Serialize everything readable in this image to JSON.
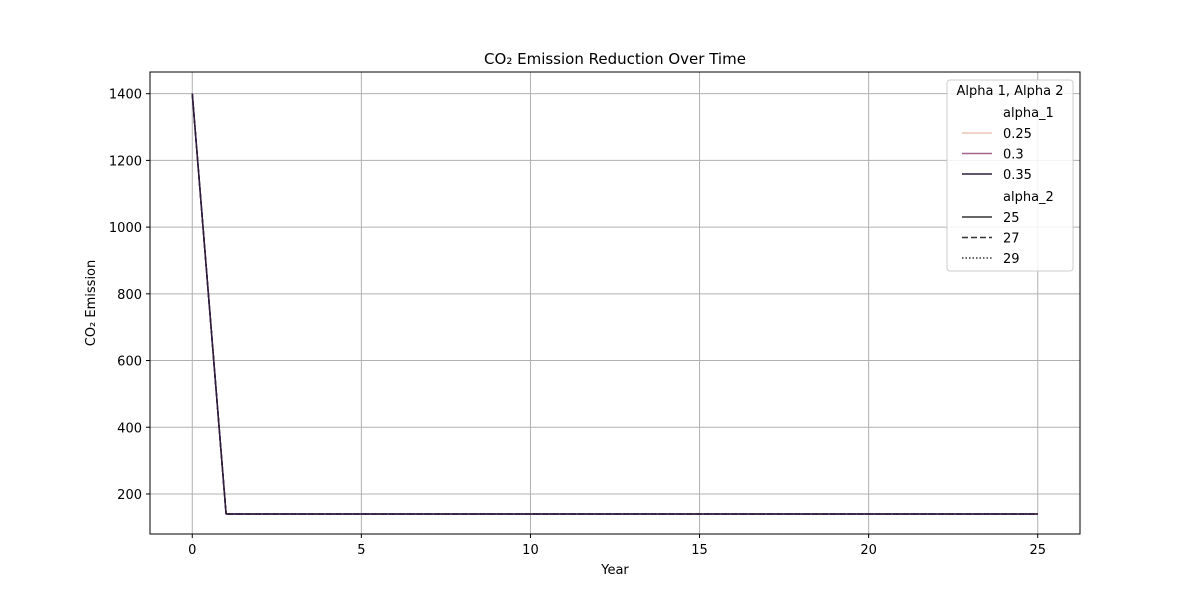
{
  "chart_data": {
    "type": "line",
    "title": "CO₂ Emission Reduction Over Time",
    "xlabel": "Year",
    "ylabel": "CO₂ Emission",
    "xlim": [
      -1.25,
      26.25
    ],
    "ylim": [
      80,
      1465
    ],
    "xticks": [
      0,
      5,
      10,
      15,
      20,
      25
    ],
    "yticks": [
      200,
      400,
      600,
      800,
      1000,
      1200,
      1400
    ],
    "grid": true,
    "x": [
      0,
      1,
      2,
      3,
      4,
      5,
      6,
      7,
      8,
      9,
      10,
      11,
      12,
      13,
      14,
      15,
      16,
      17,
      18,
      19,
      20,
      21,
      22,
      23,
      24,
      25
    ],
    "legend": {
      "title": "Alpha 1, Alpha 2",
      "placement": "top-right",
      "hue_title": "alpha_1",
      "hue_entries": [
        {
          "label": "0.25",
          "color": "#eac5b5"
        },
        {
          "label": "0.3",
          "color": "#a5628c"
        },
        {
          "label": "0.35",
          "color": "#2d1e3e"
        }
      ],
      "style_title": "alpha_2",
      "style_entries": [
        {
          "label": "25",
          "dash": "solid"
        },
        {
          "label": "27",
          "dash": "dashed"
        },
        {
          "label": "29",
          "dash": "dotted"
        }
      ]
    },
    "series": [
      {
        "alpha_1": "0.25",
        "alpha_2": "25",
        "color": "#eac5b5",
        "dash": "solid",
        "values": [
          1400,
          140,
          140,
          140,
          140,
          140,
          140,
          140,
          140,
          140,
          140,
          140,
          140,
          140,
          140,
          140,
          140,
          140,
          140,
          140,
          140,
          140,
          140,
          140,
          140,
          140
        ]
      },
      {
        "alpha_1": "0.25",
        "alpha_2": "27",
        "color": "#eac5b5",
        "dash": "dashed",
        "values": [
          1400,
          140,
          140,
          140,
          140,
          140,
          140,
          140,
          140,
          140,
          140,
          140,
          140,
          140,
          140,
          140,
          140,
          140,
          140,
          140,
          140,
          140,
          140,
          140,
          140,
          140
        ]
      },
      {
        "alpha_1": "0.25",
        "alpha_2": "29",
        "color": "#eac5b5",
        "dash": "dotted",
        "values": [
          1400,
          140,
          140,
          140,
          140,
          140,
          140,
          140,
          140,
          140,
          140,
          140,
          140,
          140,
          140,
          140,
          140,
          140,
          140,
          140,
          140,
          140,
          140,
          140,
          140,
          140
        ]
      },
      {
        "alpha_1": "0.3",
        "alpha_2": "25",
        "color": "#a5628c",
        "dash": "solid",
        "values": [
          1400,
          140,
          140,
          140,
          140,
          140,
          140,
          140,
          140,
          140,
          140,
          140,
          140,
          140,
          140,
          140,
          140,
          140,
          140,
          140,
          140,
          140,
          140,
          140,
          140,
          140
        ]
      },
      {
        "alpha_1": "0.3",
        "alpha_2": "27",
        "color": "#a5628c",
        "dash": "dashed",
        "values": [
          1400,
          140,
          140,
          140,
          140,
          140,
          140,
          140,
          140,
          140,
          140,
          140,
          140,
          140,
          140,
          140,
          140,
          140,
          140,
          140,
          140,
          140,
          140,
          140,
          140,
          140
        ]
      },
      {
        "alpha_1": "0.3",
        "alpha_2": "29",
        "color": "#a5628c",
        "dash": "dotted",
        "values": [
          1400,
          140,
          140,
          140,
          140,
          140,
          140,
          140,
          140,
          140,
          140,
          140,
          140,
          140,
          140,
          140,
          140,
          140,
          140,
          140,
          140,
          140,
          140,
          140,
          140,
          140
        ]
      },
      {
        "alpha_1": "0.35",
        "alpha_2": "25",
        "color": "#2d1e3e",
        "dash": "solid",
        "values": [
          1400,
          140,
          140,
          140,
          140,
          140,
          140,
          140,
          140,
          140,
          140,
          140,
          140,
          140,
          140,
          140,
          140,
          140,
          140,
          140,
          140,
          140,
          140,
          140,
          140,
          140
        ]
      },
      {
        "alpha_1": "0.35",
        "alpha_2": "27",
        "color": "#2d1e3e",
        "dash": "dashed",
        "values": [
          1400,
          140,
          140,
          140,
          140,
          140,
          140,
          140,
          140,
          140,
          140,
          140,
          140,
          140,
          140,
          140,
          140,
          140,
          140,
          140,
          140,
          140,
          140,
          140,
          140,
          140
        ]
      },
      {
        "alpha_1": "0.35",
        "alpha_2": "29",
        "color": "#2d1e3e",
        "dash": "dotted",
        "values": [
          1400,
          140,
          140,
          140,
          140,
          140,
          140,
          140,
          140,
          140,
          140,
          140,
          140,
          140,
          140,
          140,
          140,
          140,
          140,
          140,
          140,
          140,
          140,
          140,
          140,
          140
        ]
      }
    ]
  }
}
